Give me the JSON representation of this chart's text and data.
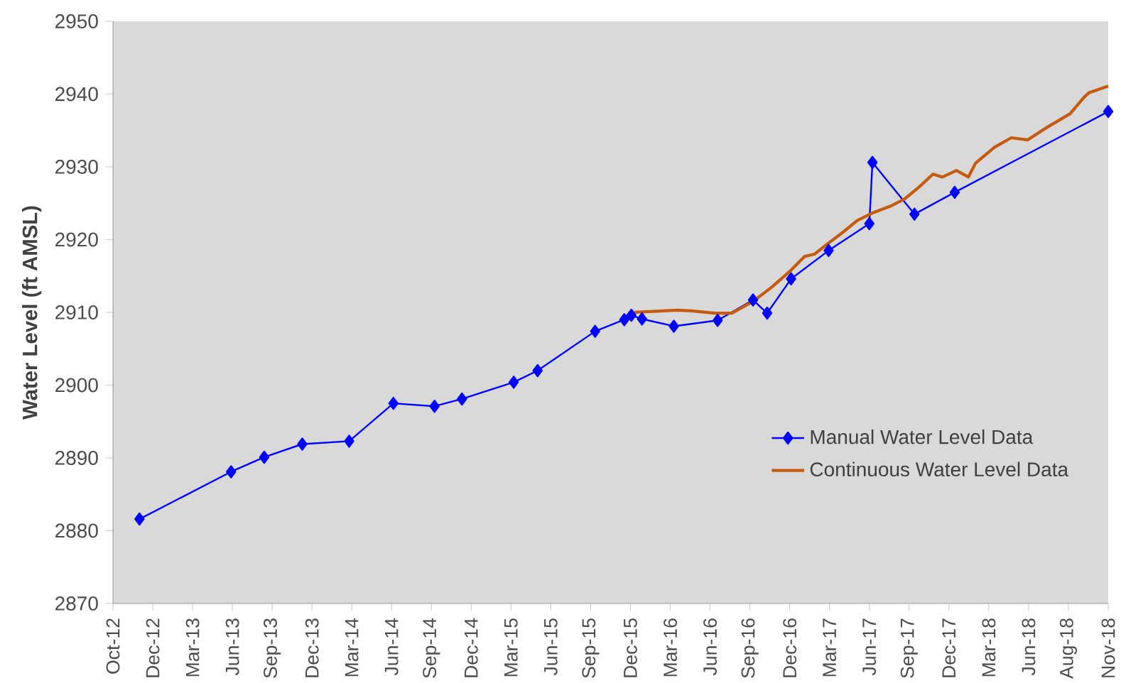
{
  "chart_data": {
    "type": "line",
    "ylabel": "Water Level (ft AMSL)",
    "xlim": [
      "2012-10-01",
      "2018-11-29"
    ],
    "xticks": [
      {
        "value": "2012-10-01",
        "label": "Oct-12"
      },
      {
        "value": "2012-12-30",
        "label": "Dec-12"
      },
      {
        "value": "2013-03-30",
        "label": "Mar-13"
      },
      {
        "value": "2013-06-28",
        "label": "Jun-13"
      },
      {
        "value": "2013-09-26",
        "label": "Sep-13"
      },
      {
        "value": "2013-12-25",
        "label": "Dec-13"
      },
      {
        "value": "2014-03-25",
        "label": "Mar-14"
      },
      {
        "value": "2014-06-23",
        "label": "Jun-14"
      },
      {
        "value": "2014-09-21",
        "label": "Sep-14"
      },
      {
        "value": "2014-12-20",
        "label": "Dec-14"
      },
      {
        "value": "2015-03-20",
        "label": "Mar-15"
      },
      {
        "value": "2015-06-18",
        "label": "Jun-15"
      },
      {
        "value": "2015-09-16",
        "label": "Sep-15"
      },
      {
        "value": "2015-12-15",
        "label": "Dec-15"
      },
      {
        "value": "2016-03-14",
        "label": "Mar-16"
      },
      {
        "value": "2016-06-12",
        "label": "Jun-16"
      },
      {
        "value": "2016-09-10",
        "label": "Sep-16"
      },
      {
        "value": "2016-12-09",
        "label": "Dec-16"
      },
      {
        "value": "2017-03-09",
        "label": "Mar-17"
      },
      {
        "value": "2017-06-07",
        "label": "Jun-17"
      },
      {
        "value": "2017-09-05",
        "label": "Sep-17"
      },
      {
        "value": "2017-12-04",
        "label": "Dec-17"
      },
      {
        "value": "2018-03-04",
        "label": "Mar-18"
      },
      {
        "value": "2018-06-02",
        "label": "Jun-18"
      },
      {
        "value": "2018-08-31",
        "label": "Aug-18"
      },
      {
        "value": "2018-11-29",
        "label": "Nov-18"
      }
    ],
    "ylim": [
      2870,
      2950
    ],
    "yticks": [
      2870,
      2880,
      2890,
      2900,
      2910,
      2920,
      2930,
      2940,
      2950
    ],
    "grid": false,
    "legend": "right",
    "series": [
      {
        "name": "Manual Water Level Data",
        "color": "#0000ff",
        "marker": "diamond",
        "x": [
          "2012-11-30",
          "2013-06-25",
          "2013-09-08",
          "2013-12-03",
          "2014-03-19",
          "2014-06-27",
          "2014-09-28",
          "2014-11-29",
          "2015-03-26",
          "2015-05-19",
          "2015-09-26",
          "2015-12-01",
          "2015-12-17",
          "2016-01-10",
          "2016-03-22",
          "2016-06-29",
          "2016-09-17",
          "2016-10-19",
          "2016-12-12",
          "2017-03-07",
          "2017-06-07",
          "2017-06-14",
          "2017-09-17",
          "2017-12-17",
          "2018-11-29"
        ],
        "values": [
          2881.6,
          2888.1,
          2890.1,
          2891.9,
          2892.3,
          2897.5,
          2897.1,
          2898.1,
          2900.4,
          2902.0,
          2907.4,
          2909.0,
          2909.6,
          2909.1,
          2908.1,
          2908.9,
          2911.7,
          2909.9,
          2914.6,
          2918.5,
          2922.2,
          2930.6,
          2923.5,
          2926.5,
          2937.6
        ]
      },
      {
        "name": "Continuous Water Level Data",
        "color": "#c55a11",
        "marker": "none",
        "x": [
          "2015-12-24",
          "2016-03-30",
          "2016-05-01",
          "2016-06-23",
          "2016-07-31",
          "2016-09-17",
          "2016-10-30",
          "2016-12-12",
          "2017-01-12",
          "2017-02-03",
          "2017-03-02",
          "2017-04-08",
          "2017-05-10",
          "2017-06-12",
          "2017-07-25",
          "2017-08-26",
          "2017-09-27",
          "2017-10-29",
          "2017-11-19",
          "2017-12-21",
          "2018-01-17",
          "2018-02-02",
          "2018-03-17",
          "2018-04-24",
          "2018-05-31",
          "2018-07-13",
          "2018-09-04",
          "2018-10-06",
          "2018-10-17",
          "2018-11-29"
        ],
        "values": [
          2910.0,
          2910.3,
          2910.2,
          2909.9,
          2909.9,
          2911.5,
          2913.5,
          2915.8,
          2917.7,
          2918.0,
          2919.3,
          2921.0,
          2922.6,
          2923.6,
          2924.6,
          2925.6,
          2927.2,
          2929.0,
          2928.6,
          2929.5,
          2928.6,
          2930.5,
          2932.7,
          2934.0,
          2933.7,
          2935.4,
          2937.3,
          2939.6,
          2940.2,
          2941.1
        ]
      }
    ]
  }
}
